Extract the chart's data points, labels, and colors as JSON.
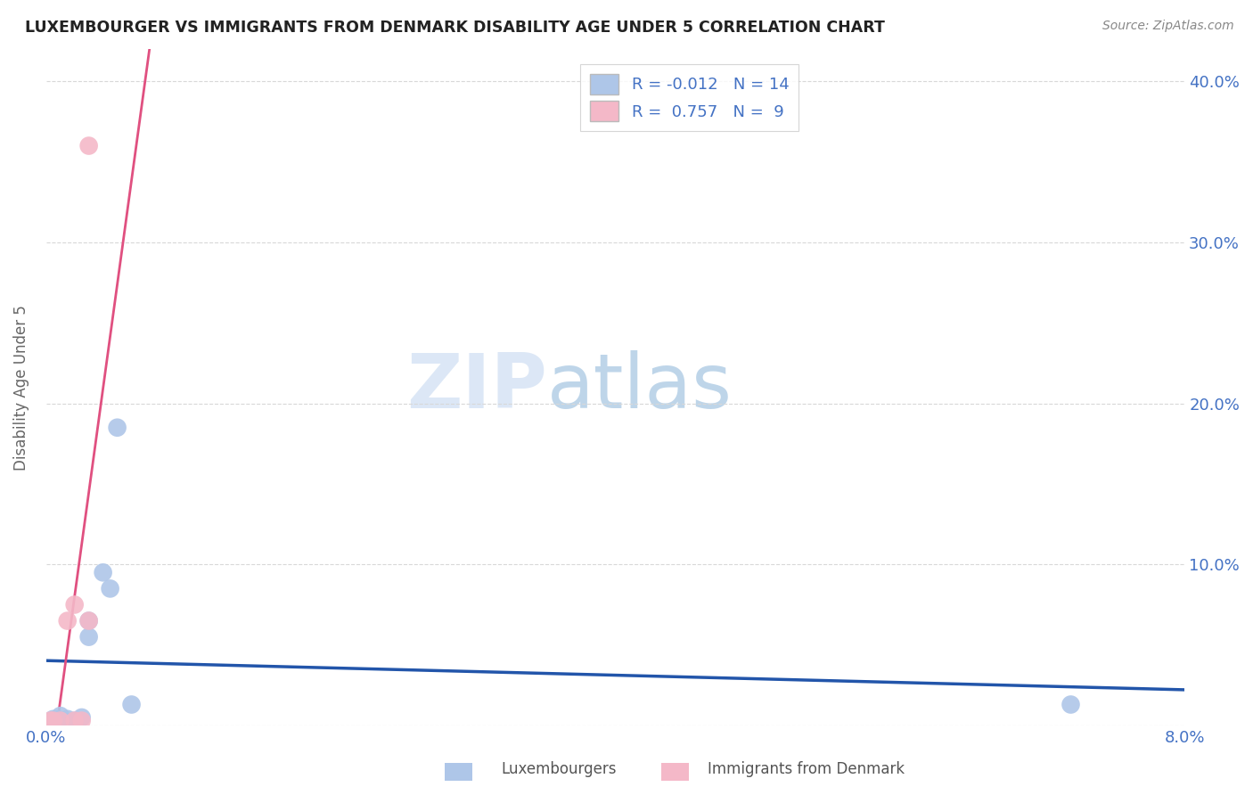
{
  "title": "LUXEMBOURGER VS IMMIGRANTS FROM DENMARK DISABILITY AGE UNDER 5 CORRELATION CHART",
  "source": "Source: ZipAtlas.com",
  "ylabel": "Disability Age Under 5",
  "xlim": [
    0.0,
    0.08
  ],
  "ylim": [
    0.0,
    0.42
  ],
  "xticks": [
    0.0,
    0.02,
    0.04,
    0.06,
    0.08
  ],
  "xtick_labels": [
    "0.0%",
    "",
    "",
    "",
    "8.0%"
  ],
  "ytick_labels": [
    "",
    "10.0%",
    "20.0%",
    "30.0%",
    "40.0%"
  ],
  "yticks": [
    0.0,
    0.1,
    0.2,
    0.3,
    0.4
  ],
  "lux_points": [
    [
      0.0005,
      0.004
    ],
    [
      0.0008,
      0.004
    ],
    [
      0.001,
      0.003
    ],
    [
      0.001,
      0.006
    ],
    [
      0.0015,
      0.004
    ],
    [
      0.002,
      0.003
    ],
    [
      0.0025,
      0.005
    ],
    [
      0.003,
      0.065
    ],
    [
      0.003,
      0.055
    ],
    [
      0.004,
      0.095
    ],
    [
      0.0045,
      0.085
    ],
    [
      0.005,
      0.185
    ],
    [
      0.006,
      0.013
    ],
    [
      0.072,
      0.013
    ]
  ],
  "den_points": [
    [
      0.0003,
      0.003
    ],
    [
      0.0005,
      0.003
    ],
    [
      0.001,
      0.003
    ],
    [
      0.0015,
      0.065
    ],
    [
      0.002,
      0.075
    ],
    [
      0.002,
      0.003
    ],
    [
      0.0025,
      0.003
    ],
    [
      0.003,
      0.065
    ],
    [
      0.003,
      0.36
    ]
  ],
  "lux_color": "#aec6e8",
  "den_color": "#f4b8c8",
  "lux_line_color": "#2255aa",
  "den_line_color": "#e05080",
  "dash_color": "#d0a0b0",
  "r_lux": -0.012,
  "n_lux": 14,
  "r_den": 0.757,
  "n_den": 9,
  "watermark_zip": "ZIP",
  "watermark_atlas": "atlas",
  "legend_lux": "Luxembourgers",
  "legend_den": "Immigrants from Denmark",
  "background_color": "#ffffff",
  "grid_color": "#d8d8d8"
}
